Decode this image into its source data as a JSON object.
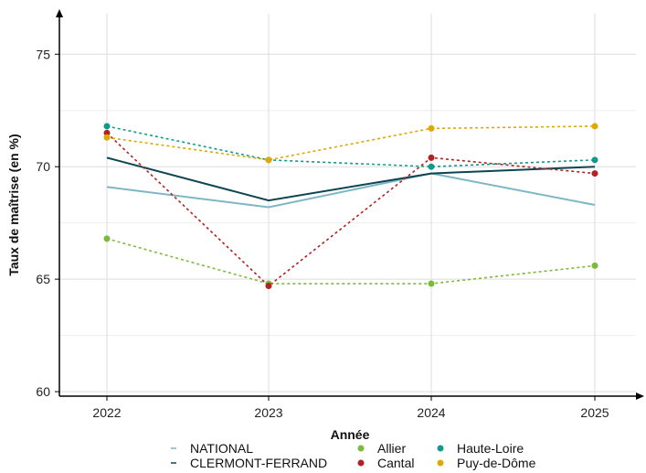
{
  "chart_data": {
    "type": "line",
    "xlabel": "Année",
    "ylabel": "Taux de maîtrise (en %)",
    "x": [
      "2022",
      "2023",
      "2024",
      "2025"
    ],
    "ylim": [
      59.8,
      76.8
    ],
    "yticks": [
      60,
      65,
      70,
      75
    ],
    "grid": true,
    "legend_position": "bottom",
    "series": [
      {
        "name": "NATIONAL",
        "values": [
          69.1,
          68.2,
          69.7,
          68.3
        ],
        "color": "#7fb6c4",
        "style": "solid",
        "markers": false
      },
      {
        "name": "CLERMONT-FERRAND",
        "values": [
          70.4,
          68.5,
          69.7,
          70.0
        ],
        "color": "#0d4550",
        "style": "solid",
        "markers": false
      },
      {
        "name": "Allier",
        "values": [
          66.8,
          64.8,
          64.8,
          65.6
        ],
        "color": "#7cba3c",
        "style": "dashed",
        "markers": true
      },
      {
        "name": "Cantal",
        "values": [
          71.5,
          64.7,
          70.4,
          69.7
        ],
        "color": "#b22222",
        "style": "dashed",
        "markers": true
      },
      {
        "name": "Haute-Loire",
        "values": [
          71.8,
          70.3,
          70.0,
          70.3
        ],
        "color": "#0f9a8c",
        "style": "dashed",
        "markers": true
      },
      {
        "name": "Puy-de-Dôme",
        "values": [
          71.3,
          70.3,
          71.7,
          71.8
        ],
        "color": "#e0a800",
        "style": "dashed",
        "markers": true
      }
    ]
  }
}
